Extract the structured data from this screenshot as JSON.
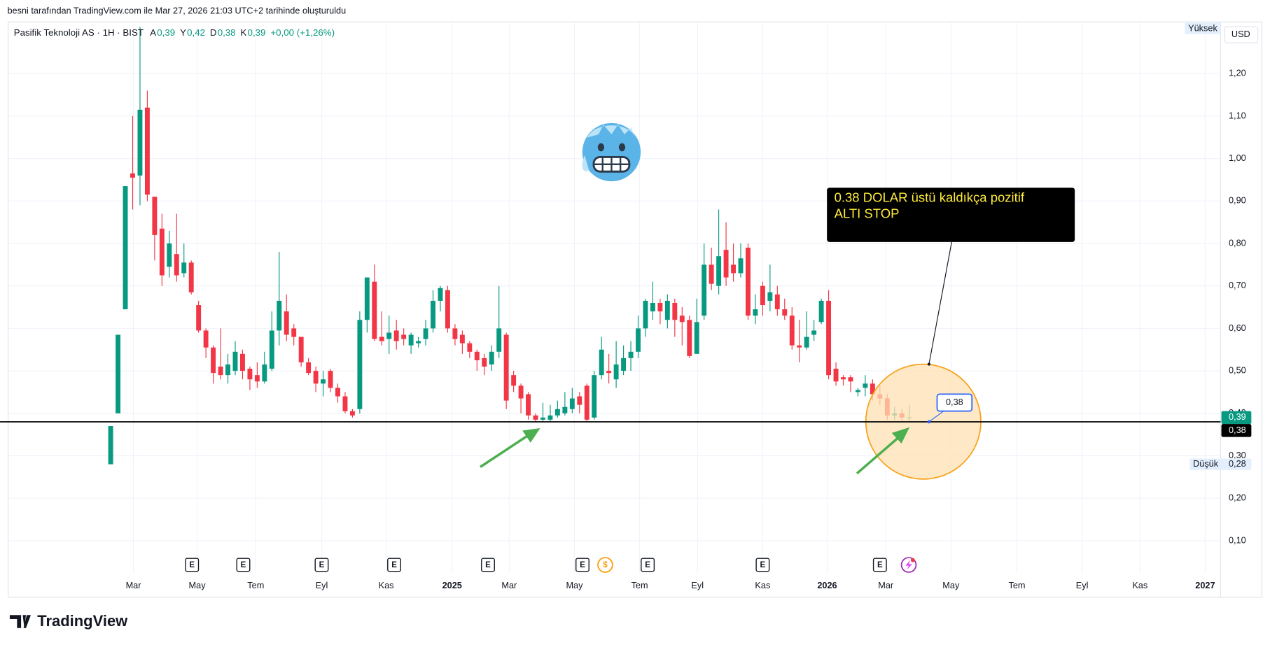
{
  "header": "besni tarafından TradingView.com ile Mar 27, 2026 21:03 UTC+2 tarihinde oluşturuldu",
  "logo": "TradingView",
  "chart_data": {
    "type": "candlestick",
    "title": "Pasifik Teknoloji AS · 1H · BIST",
    "legend_values": [
      {
        "label": "A",
        "value": "0,39"
      },
      {
        "label": "Y",
        "value": "0,42"
      },
      {
        "label": "D",
        "value": "0,38"
      },
      {
        "label": "K",
        "value": "0,39"
      }
    ],
    "change": "+0,00 (+1,26%)",
    "colors": {
      "up": "#089981",
      "down": "#f23645"
    },
    "open": [
      0.28,
      0.4,
      0.645,
      0.965,
      0.96,
      1.12,
      0.91,
      0.835,
      0.745,
      0.775,
      0.73,
      0.755,
      0.655,
      0.595,
      0.555,
      0.51,
      0.49,
      0.5,
      0.54,
      0.505,
      0.49,
      0.475,
      0.505,
      0.595,
      0.64,
      0.6,
      0.58,
      0.52,
      0.5,
      0.47,
      0.5,
      0.46,
      0.44,
      0.405,
      0.41,
      0.62,
      0.71,
      0.58,
      0.575,
      0.595,
      0.585,
      0.56,
      0.565,
      0.575,
      0.6,
      0.665,
      0.69,
      0.6,
      0.585,
      0.565,
      0.545,
      0.53,
      0.515,
      0.545,
      0.585,
      0.49,
      0.465,
      0.445,
      0.395,
      0.385,
      0.385,
      0.395,
      0.4,
      0.41,
      0.44,
      0.465,
      0.39,
      0.49,
      0.5,
      0.48,
      0.5,
      0.53,
      0.545,
      0.6,
      0.64,
      0.66,
      0.62,
      0.66,
      0.63,
      0.62,
      0.54,
      0.63,
      0.75,
      0.7,
      0.785,
      0.75,
      0.73,
      0.79,
      0.63,
      0.7,
      0.665,
      0.68,
      0.645,
      0.63,
      0.56,
      0.555,
      0.585,
      0.615,
      0.665,
      0.505,
      0.485,
      0.485,
      0.45,
      0.46,
      0.47,
      0.445,
      0.435,
      0.395,
      0.4,
      0.39
    ],
    "high": [
      0.37,
      0.585,
      0.935,
      1.1,
      1.31,
      1.16,
      0.91,
      0.87,
      0.83,
      0.87,
      0.8,
      0.76,
      0.665,
      0.6,
      0.56,
      0.6,
      0.54,
      0.57,
      0.55,
      0.51,
      0.52,
      0.545,
      0.64,
      0.78,
      0.68,
      0.61,
      0.58,
      0.53,
      0.51,
      0.5,
      0.505,
      0.47,
      0.45,
      0.41,
      0.64,
      0.72,
      0.75,
      0.64,
      0.63,
      0.62,
      0.6,
      0.59,
      0.58,
      0.62,
      0.69,
      0.7,
      0.7,
      0.61,
      0.595,
      0.57,
      0.55,
      0.54,
      0.56,
      0.7,
      0.59,
      0.5,
      0.47,
      0.45,
      0.4,
      0.425,
      0.42,
      0.43,
      0.45,
      0.46,
      0.45,
      0.47,
      0.5,
      0.58,
      0.54,
      0.57,
      0.56,
      0.57,
      0.63,
      0.67,
      0.71,
      0.67,
      0.68,
      0.67,
      0.65,
      0.63,
      0.67,
      0.8,
      0.79,
      0.88,
      0.85,
      0.8,
      0.8,
      0.8,
      0.68,
      0.71,
      0.75,
      0.7,
      0.67,
      0.65,
      0.62,
      0.64,
      0.62,
      0.67,
      0.69,
      0.52,
      0.49,
      0.49,
      0.46,
      0.49,
      0.48,
      0.465,
      0.445,
      0.415,
      0.41,
      0.42
    ],
    "low": [
      0.28,
      0.4,
      0.645,
      0.88,
      0.89,
      0.9,
      0.76,
      0.7,
      0.72,
      0.71,
      0.72,
      0.68,
      0.59,
      0.53,
      0.47,
      0.48,
      0.47,
      0.49,
      0.48,
      0.455,
      0.46,
      0.47,
      0.5,
      0.56,
      0.57,
      0.56,
      0.51,
      0.49,
      0.45,
      0.44,
      0.45,
      0.425,
      0.4,
      0.39,
      0.4,
      0.59,
      0.57,
      0.56,
      0.54,
      0.55,
      0.56,
      0.54,
      0.555,
      0.56,
      0.59,
      0.64,
      0.59,
      0.56,
      0.54,
      0.53,
      0.5,
      0.49,
      0.5,
      0.53,
      0.41,
      0.45,
      0.4,
      0.385,
      0.38,
      0.38,
      0.38,
      0.39,
      0.395,
      0.4,
      0.4,
      0.38,
      0.385,
      0.48,
      0.47,
      0.46,
      0.49,
      0.5,
      0.53,
      0.58,
      0.62,
      0.61,
      0.6,
      0.58,
      0.56,
      0.53,
      0.54,
      0.62,
      0.69,
      0.68,
      0.7,
      0.71,
      0.72,
      0.62,
      0.61,
      0.63,
      0.64,
      0.63,
      0.62,
      0.55,
      0.52,
      0.55,
      0.57,
      0.61,
      0.48,
      0.465,
      0.465,
      0.45,
      0.44,
      0.44,
      0.43,
      0.42,
      0.385,
      0.385,
      0.38,
      0.38
    ],
    "close": [
      0.37,
      0.585,
      0.935,
      0.955,
      1.115,
      0.915,
      0.82,
      0.725,
      0.8,
      0.725,
      0.755,
      0.685,
      0.595,
      0.555,
      0.495,
      0.49,
      0.515,
      0.545,
      0.5,
      0.48,
      0.475,
      0.515,
      0.595,
      0.665,
      0.585,
      0.58,
      0.52,
      0.495,
      0.47,
      0.48,
      0.46,
      0.44,
      0.405,
      0.395,
      0.62,
      0.72,
      0.575,
      0.57,
      0.59,
      0.57,
      0.575,
      0.585,
      0.57,
      0.6,
      0.665,
      0.695,
      0.6,
      0.575,
      0.565,
      0.545,
      0.525,
      0.51,
      0.545,
      0.6,
      0.43,
      0.465,
      0.435,
      0.395,
      0.385,
      0.39,
      0.395,
      0.41,
      0.415,
      0.435,
      0.42,
      0.385,
      0.49,
      0.55,
      0.495,
      0.515,
      0.53,
      0.545,
      0.6,
      0.665,
      0.66,
      0.64,
      0.665,
      0.62,
      0.615,
      0.535,
      0.615,
      0.75,
      0.705,
      0.77,
      0.72,
      0.73,
      0.765,
      0.63,
      0.645,
      0.655,
      0.685,
      0.645,
      0.63,
      0.56,
      0.555,
      0.58,
      0.595,
      0.665,
      0.49,
      0.475,
      0.48,
      0.475,
      0.455,
      0.47,
      0.445,
      0.435,
      0.395,
      0.4,
      0.39,
      0.39
    ],
    "xlim": [
      -14.0,
      151.5
    ],
    "xticks": [
      {
        "value": 3.1,
        "label": "Mar"
      },
      {
        "value": 11.8,
        "label": "May"
      },
      {
        "value": 19.8,
        "label": "Tem"
      },
      {
        "value": 28.8,
        "label": "Eyl"
      },
      {
        "value": 37.6,
        "label": "Kas"
      },
      {
        "value": 46.6,
        "label": "2025"
      },
      {
        "value": 54.4,
        "label": "Mar"
      },
      {
        "value": 63.3,
        "label": "May"
      },
      {
        "value": 72.2,
        "label": "Tem"
      },
      {
        "value": 80.1,
        "label": "Eyl"
      },
      {
        "value": 89.0,
        "label": "Kas"
      },
      {
        "value": 97.8,
        "label": "2026"
      },
      {
        "value": 105.8,
        "label": "Mar"
      },
      {
        "value": 114.7,
        "label": "May"
      },
      {
        "value": 123.7,
        "label": "Tem"
      },
      {
        "value": 132.6,
        "label": "Eyl"
      },
      {
        "value": 140.5,
        "label": "Kas"
      },
      {
        "value": 149.4,
        "label": "2027"
      }
    ],
    "ylim": [
      0.024,
      1.32
    ],
    "yticks": [
      {
        "value": 0.1,
        "label": "0,10"
      },
      {
        "value": 0.2,
        "label": "0,20"
      },
      {
        "value": 0.3,
        "label": "0,30"
      },
      {
        "value": 0.4,
        "label": "0,40"
      },
      {
        "value": 0.5,
        "label": "0,50"
      },
      {
        "value": 0.6,
        "label": "0,60"
      },
      {
        "value": 0.7,
        "label": "0,70"
      },
      {
        "value": 0.8,
        "label": "0,80"
      },
      {
        "value": 0.9,
        "label": "0,90"
      },
      {
        "value": 1.0,
        "label": "1,00"
      },
      {
        "value": 1.1,
        "label": "1,10"
      },
      {
        "value": 1.2,
        "label": "1,20"
      }
    ],
    "grid": true,
    "currency": "USD",
    "high_label": "Yüksek",
    "low_marker": {
      "text": "Düşük",
      "value": 0.28,
      "label": "0,28"
    },
    "price_labels": [
      {
        "value": 0.39,
        "label": "0,39",
        "color": "#089981"
      },
      {
        "value": 0.38,
        "label": "0,38",
        "color": "#000000"
      }
    ],
    "hline": 0.38,
    "annotation": [
      "0.38 DOLAR üstü kaldıkça pozitif",
      "ALTI STOP"
    ],
    "callout": {
      "value": 0.38,
      "label": "0,38"
    },
    "events": [
      {
        "x": 11.1,
        "label": "E"
      },
      {
        "x": 18.1,
        "label": "E"
      },
      {
        "x": 28.8,
        "label": "E"
      },
      {
        "x": 38.7,
        "label": "E"
      },
      {
        "x": 51.5,
        "label": "E"
      },
      {
        "x": 64.4,
        "label": "E"
      },
      {
        "x": 67.5,
        "label": "$"
      },
      {
        "x": 73.3,
        "label": "E"
      },
      {
        "x": 89.0,
        "label": "E"
      },
      {
        "x": 105.0,
        "label": "E"
      }
    ]
  }
}
